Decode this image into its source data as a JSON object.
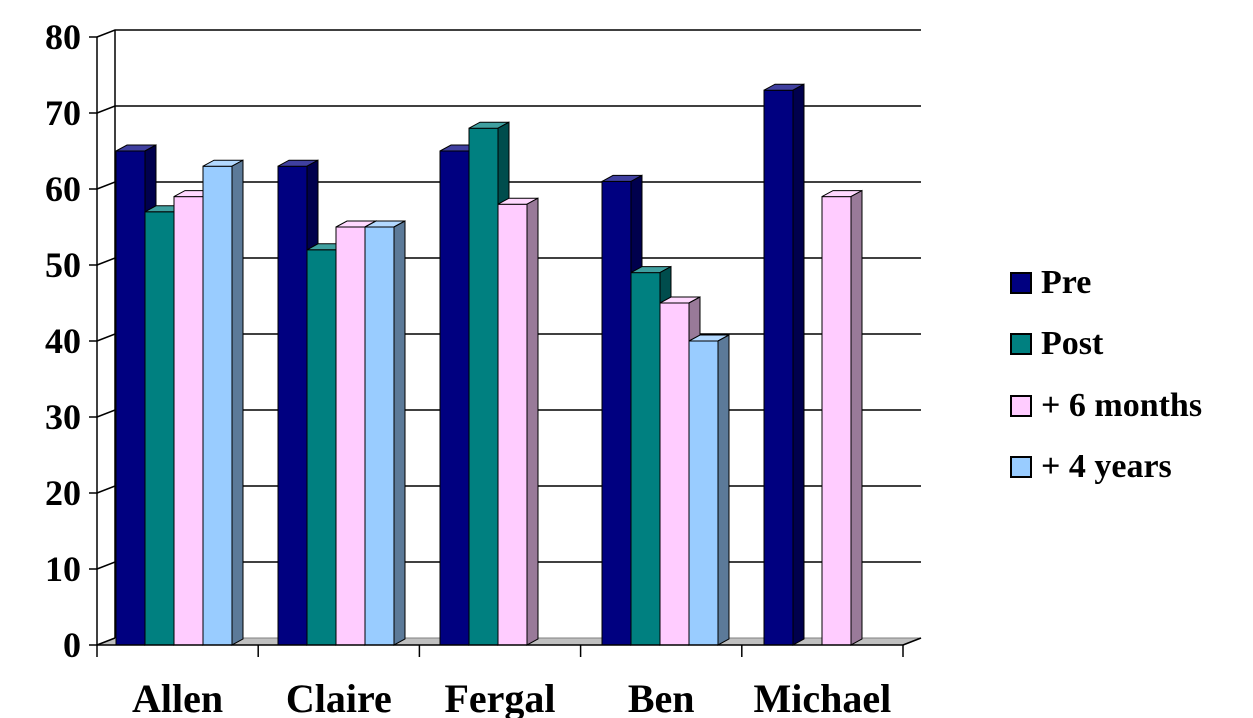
{
  "chart_data": {
    "type": "bar",
    "title": "",
    "xlabel": "",
    "ylabel": "",
    "categories": [
      "Allen",
      "Claire",
      "Fergal",
      "Ben",
      "Michael"
    ],
    "series": [
      {
        "name": "Pre",
        "values": [
          65,
          63,
          65,
          61,
          73
        ],
        "color": "#000080"
      },
      {
        "name": "Post",
        "values": [
          57,
          52,
          68,
          49,
          null
        ],
        "color": "#008080"
      },
      {
        "name": "+ 6 months",
        "values": [
          59,
          55,
          58,
          45,
          59
        ],
        "color": "#ffccff"
      },
      {
        "name": "+ 4 years",
        "values": [
          63,
          55,
          null,
          40,
          null
        ],
        "color": "#99ccff"
      }
    ],
    "ylim": [
      0,
      80
    ],
    "yticks": [
      0,
      10,
      20,
      30,
      40,
      50,
      60,
      70,
      80
    ],
    "grid": true,
    "legend_position": "right",
    "three_d": true
  }
}
